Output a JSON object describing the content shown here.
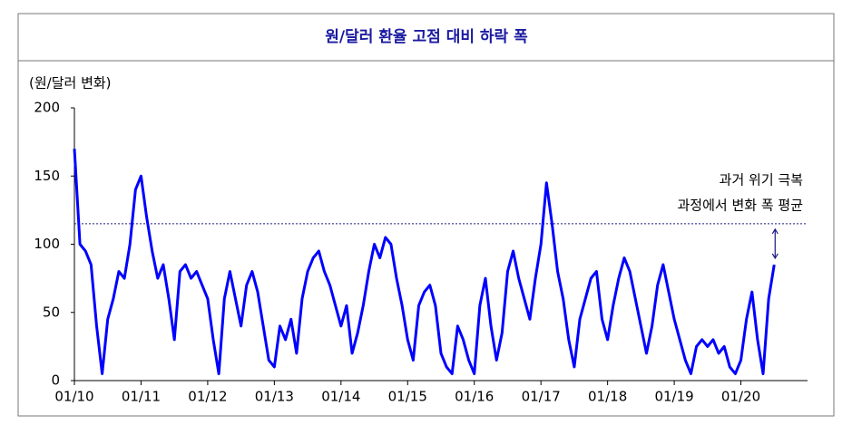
{
  "chart_data": {
    "type": "line",
    "title": "원/달러 환율 고점 대비 하락 폭",
    "y_label": "(원/달러 변화)",
    "x": [
      "2010-01",
      "2010-02",
      "2010-03",
      "2010-04",
      "2010-05",
      "2010-06",
      "2010-07",
      "2010-08",
      "2010-09",
      "2010-10",
      "2010-11",
      "2010-12",
      "2011-01",
      "2011-02",
      "2011-03",
      "2011-04",
      "2011-05",
      "2011-06",
      "2011-07",
      "2011-08",
      "2011-09",
      "2011-10",
      "2011-11",
      "2011-12",
      "2012-01",
      "2012-02",
      "2012-03",
      "2012-04",
      "2012-05",
      "2012-06",
      "2012-07",
      "2012-08",
      "2012-09",
      "2012-10",
      "2012-11",
      "2012-12",
      "2013-01",
      "2013-02",
      "2013-03",
      "2013-04",
      "2013-05",
      "2013-06",
      "2013-07",
      "2013-08",
      "2013-09",
      "2013-10",
      "2013-11",
      "2013-12",
      "2014-01",
      "2014-02",
      "2014-03",
      "2014-04",
      "2014-05",
      "2014-06",
      "2014-07",
      "2014-08",
      "2014-09",
      "2014-10",
      "2014-11",
      "2014-12",
      "2015-01",
      "2015-02",
      "2015-03",
      "2015-04",
      "2015-05",
      "2015-06",
      "2015-07",
      "2015-08",
      "2015-09",
      "2015-10",
      "2015-11",
      "2015-12",
      "2016-01",
      "2016-02",
      "2016-03",
      "2016-04",
      "2016-05",
      "2016-06",
      "2016-07",
      "2016-08",
      "2016-09",
      "2016-10",
      "2016-11",
      "2016-12",
      "2017-01",
      "2017-02",
      "2017-03",
      "2017-04",
      "2017-05",
      "2017-06",
      "2017-07",
      "2017-08",
      "2017-09",
      "2017-10",
      "2017-11",
      "2017-12",
      "2018-01",
      "2018-02",
      "2018-03",
      "2018-04",
      "2018-05",
      "2018-06",
      "2018-07",
      "2018-08",
      "2018-09",
      "2018-10",
      "2018-11",
      "2018-12",
      "2019-01",
      "2019-02",
      "2019-03",
      "2019-04",
      "2019-05",
      "2019-06",
      "2019-07",
      "2019-08",
      "2019-09",
      "2019-10",
      "2019-11",
      "2019-12",
      "2020-01",
      "2020-02",
      "2020-03",
      "2020-04",
      "2020-05",
      "2020-06",
      "2020-07"
    ],
    "series": [
      {
        "color": "#0000ff",
        "values": [
          170,
          100,
          95,
          85,
          40,
          5,
          45,
          60,
          80,
          75,
          100,
          140,
          150,
          120,
          95,
          75,
          85,
          60,
          30,
          80,
          85,
          75,
          80,
          70,
          60,
          30,
          5,
          60,
          80,
          60,
          40,
          70,
          80,
          65,
          40,
          15,
          10,
          40,
          30,
          45,
          20,
          60,
          80,
          90,
          95,
          80,
          70,
          55,
          40,
          55,
          20,
          35,
          55,
          80,
          100,
          90,
          105,
          100,
          75,
          55,
          30,
          15,
          55,
          65,
          70,
          55,
          20,
          10,
          5,
          40,
          30,
          15,
          5,
          55,
          75,
          40,
          15,
          35,
          80,
          95,
          75,
          60,
          45,
          75,
          100,
          145,
          115,
          80,
          60,
          30,
          10,
          45,
          60,
          75,
          80,
          45,
          30,
          55,
          75,
          90,
          80,
          60,
          40,
          20,
          40,
          70,
          85,
          65,
          45,
          30,
          15,
          5,
          25,
          30,
          25,
          30,
          20,
          25,
          10,
          5,
          15,
          45,
          65,
          30,
          5,
          60,
          85
        ]
      }
    ],
    "xlim": [
      "2010-01",
      "2021-01"
    ],
    "xticks": [
      {
        "value": "2010-01",
        "label": "01/10"
      },
      {
        "value": "2011-01",
        "label": "01/11"
      },
      {
        "value": "2012-01",
        "label": "01/12"
      },
      {
        "value": "2013-01",
        "label": "01/13"
      },
      {
        "value": "2014-01",
        "label": "01/14"
      },
      {
        "value": "2015-01",
        "label": "01/15"
      },
      {
        "value": "2016-01",
        "label": "01/16"
      },
      {
        "value": "2017-01",
        "label": "01/17"
      },
      {
        "value": "2018-01",
        "label": "01/18"
      },
      {
        "value": "2019-01",
        "label": "01/19"
      },
      {
        "value": "2020-01",
        "label": "01/20"
      }
    ],
    "ylim": [
      0,
      200
    ],
    "yticks": [
      0,
      50,
      100,
      150,
      200
    ],
    "reference_line": {
      "value": 115,
      "label": [
        "과거 위기 극복",
        "과정에서 변화 폭 평균"
      ]
    }
  }
}
